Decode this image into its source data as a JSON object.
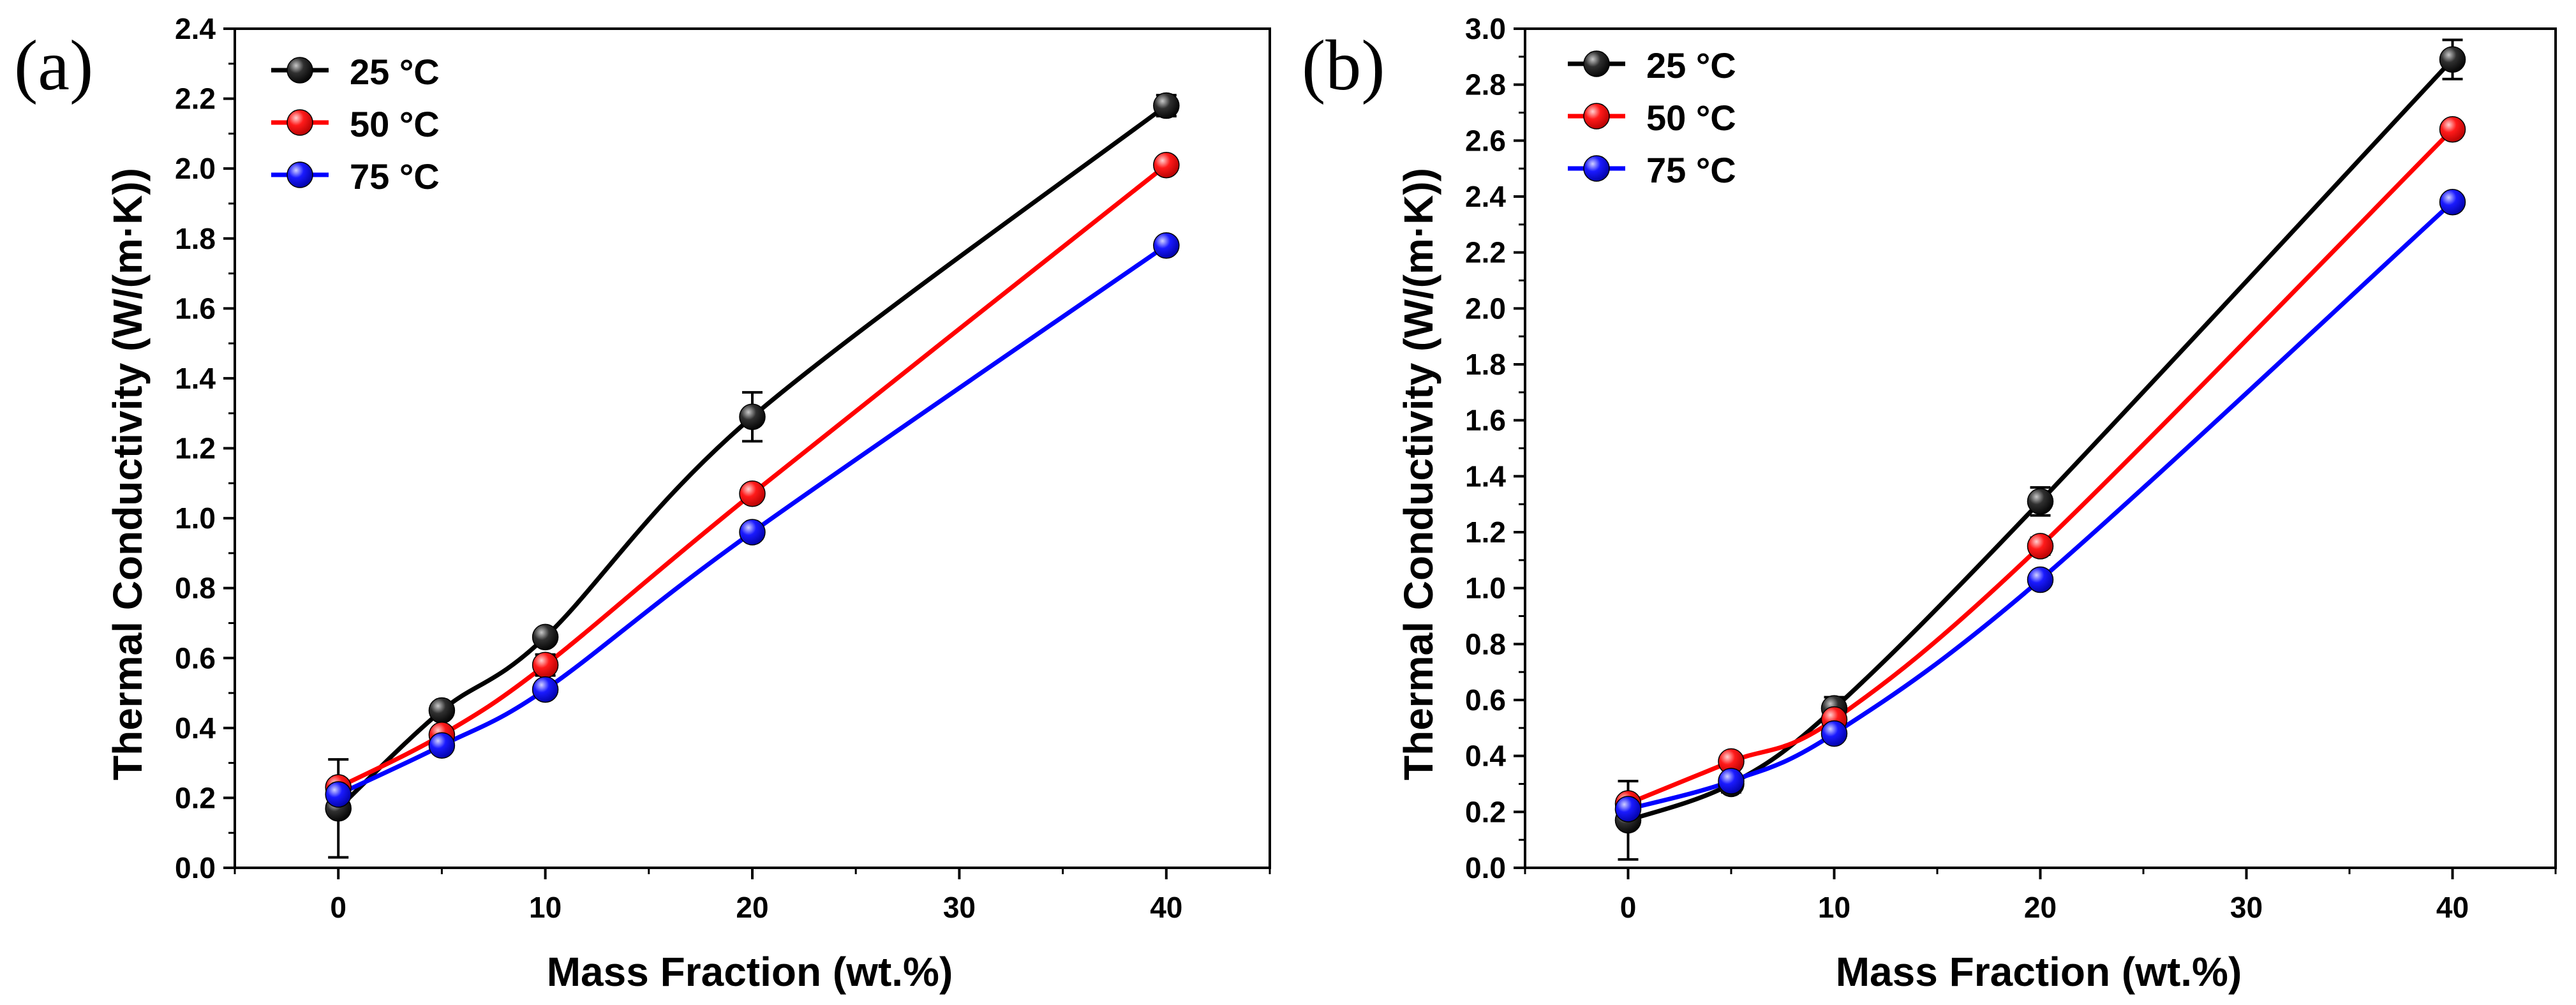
{
  "chart_data": [
    {
      "panel_label": "(a)",
      "type": "line",
      "xlabel": "Mass Fraction (wt.%)",
      "ylabel": "Thermal Conductivity (W/(m·K))",
      "xlim": [
        -5,
        45
      ],
      "ylim": [
        0,
        2.4
      ],
      "x_ticks": [
        0,
        10,
        20,
        30,
        40
      ],
      "y_ticks": [
        0.0,
        0.2,
        0.4,
        0.6,
        0.8,
        1.0,
        1.2,
        1.4,
        1.6,
        1.8,
        2.0,
        2.2,
        2.4
      ],
      "legend_position": "top-left",
      "grid": false,
      "x": [
        0,
        5,
        10,
        20,
        40
      ],
      "series": [
        {
          "name": "25 °C",
          "color": "#000000",
          "values": [
            0.17,
            0.45,
            0.66,
            1.29,
            2.18
          ],
          "errors": [
            0.14,
            0.02,
            0.02,
            0.07,
            0.03
          ]
        },
        {
          "name": "50 °C",
          "color": "#ff0000",
          "values": [
            0.23,
            0.38,
            0.58,
            1.07,
            2.01
          ],
          "errors": [
            0.02,
            0.02,
            0.03,
            0.02,
            0.02
          ]
        },
        {
          "name": "75 °C",
          "color": "#0000ff",
          "values": [
            0.21,
            0.35,
            0.51,
            0.96,
            1.78
          ],
          "errors": [
            0.02,
            0.02,
            0.02,
            0.02,
            0.02
          ]
        }
      ]
    },
    {
      "panel_label": "(b)",
      "type": "line",
      "xlabel": "Mass Fraction (wt.%)",
      "ylabel": "Thermal Conductivity (W/(m·K))",
      "xlim": [
        -5,
        45
      ],
      "ylim": [
        0,
        3.0
      ],
      "x_ticks": [
        0,
        10,
        20,
        30,
        40
      ],
      "y_ticks": [
        0.0,
        0.2,
        0.4,
        0.6,
        0.8,
        1.0,
        1.2,
        1.4,
        1.6,
        1.8,
        2.0,
        2.2,
        2.4,
        2.6,
        2.8,
        3.0
      ],
      "legend_position": "top-left",
      "grid": false,
      "x": [
        0,
        5,
        10,
        20,
        40
      ],
      "series": [
        {
          "name": "25 °C",
          "color": "#000000",
          "values": [
            0.17,
            0.3,
            0.57,
            1.31,
            2.89
          ],
          "errors": [
            0.14,
            0.03,
            0.04,
            0.05,
            0.07
          ]
        },
        {
          "name": "50 °C",
          "color": "#ff0000",
          "values": [
            0.23,
            0.38,
            0.53,
            1.15,
            2.64
          ],
          "errors": [
            0.02,
            0.02,
            0.02,
            0.03,
            0.02
          ]
        },
        {
          "name": "75 °C",
          "color": "#0000ff",
          "values": [
            0.21,
            0.31,
            0.48,
            1.03,
            2.38
          ],
          "errors": [
            0.02,
            0.02,
            0.02,
            0.02,
            0.02
          ]
        }
      ]
    }
  ]
}
